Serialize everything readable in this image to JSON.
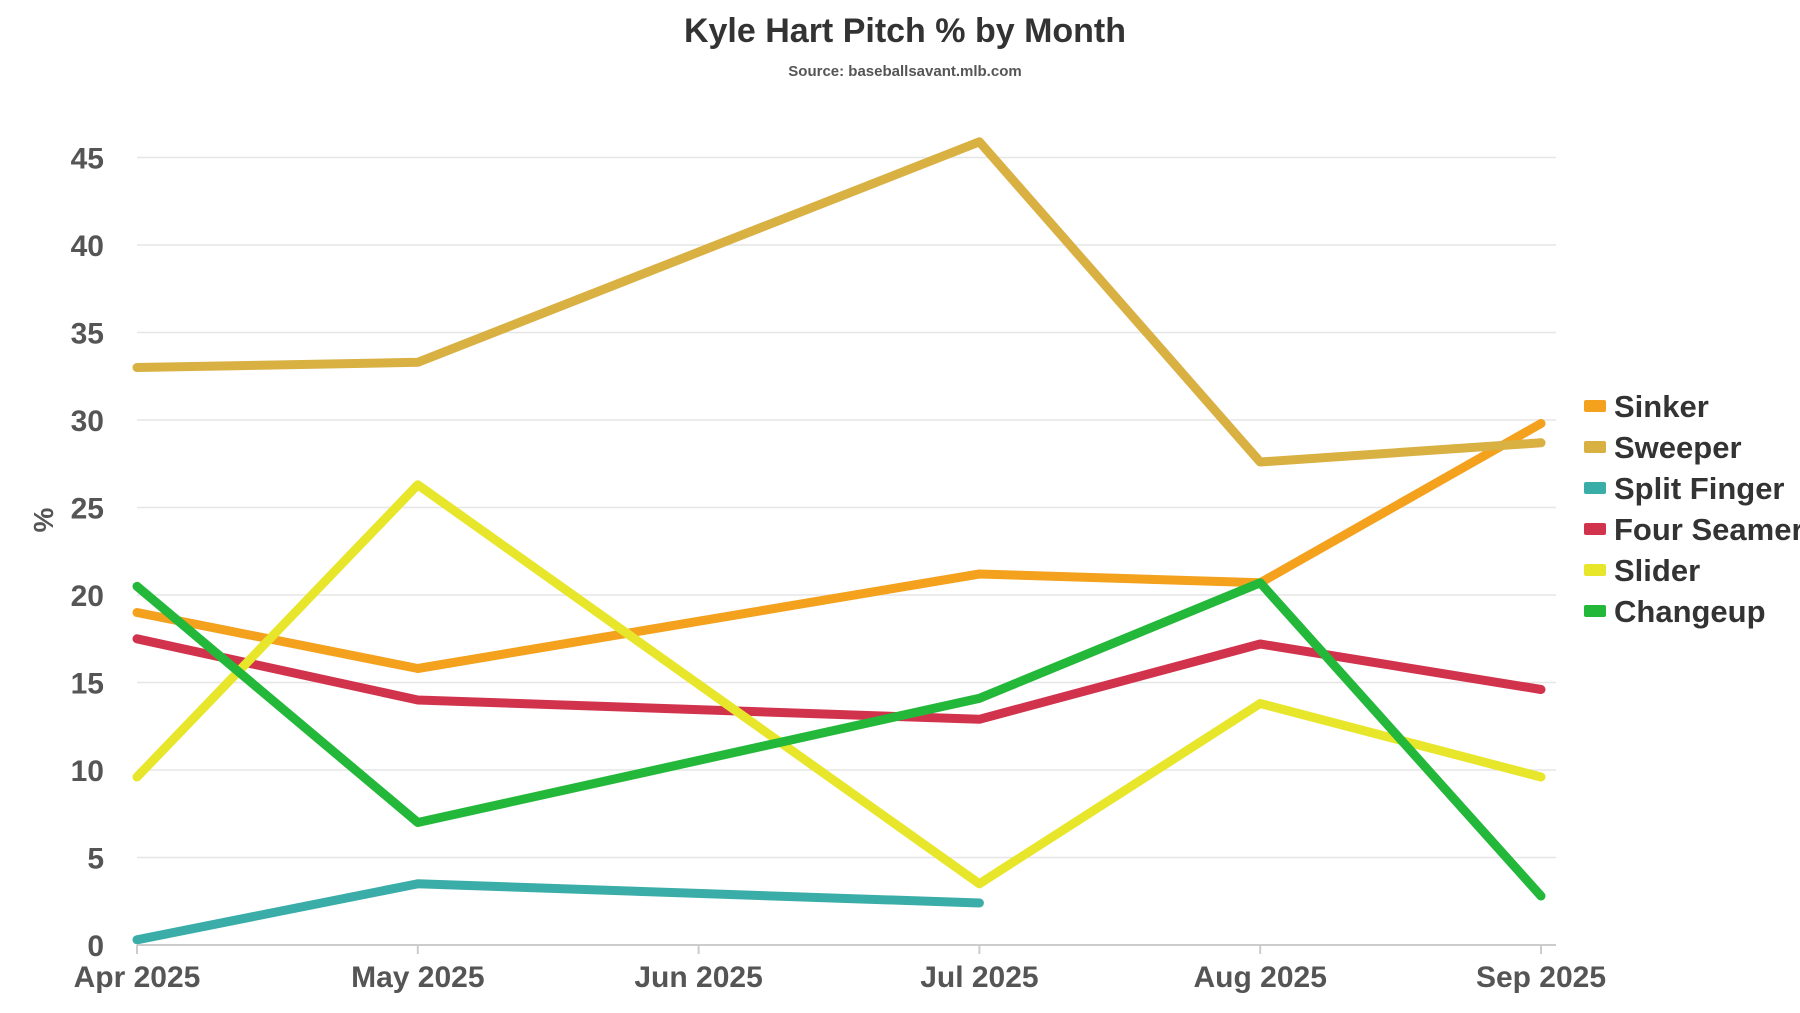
{
  "chart_data": {
    "type": "line",
    "title": "Kyle Hart Pitch % by Month",
    "subtitle": "Source: baseballsavant.mlb.com",
    "xlabel": "",
    "ylabel": "%",
    "ylim": [
      0,
      46
    ],
    "yticks": [
      0,
      5,
      10,
      15,
      20,
      25,
      30,
      35,
      40,
      45
    ],
    "grid": true,
    "legend_position": "right",
    "categories": [
      "Apr 2025",
      "May 2025",
      "Jun 2025",
      "Jul 2025",
      "Aug 2025",
      "Sep 2025"
    ],
    "series": [
      {
        "name": "Sinker",
        "color": "#F4A11D",
        "points": [
          [
            0,
            19.0
          ],
          [
            1,
            15.8
          ],
          [
            3,
            21.2
          ],
          [
            4,
            20.7
          ],
          [
            5,
            29.8
          ]
        ]
      },
      {
        "name": "Sweeper",
        "color": "#D9B042",
        "points": [
          [
            0,
            33.0
          ],
          [
            1,
            33.3
          ],
          [
            3,
            45.9
          ],
          [
            4,
            27.6
          ],
          [
            5,
            28.7
          ]
        ]
      },
      {
        "name": "Split Finger",
        "color": "#3AADA8",
        "points": [
          [
            0,
            0.3
          ],
          [
            1,
            3.5
          ],
          [
            3,
            2.4
          ]
        ]
      },
      {
        "name": "Four Seamer",
        "color": "#D2334C",
        "points": [
          [
            0,
            17.5
          ],
          [
            1,
            14.0
          ],
          [
            3,
            12.9
          ],
          [
            4,
            17.2
          ],
          [
            5,
            14.6
          ]
        ]
      },
      {
        "name": "Slider",
        "color": "#E8E62A",
        "points": [
          [
            0,
            9.6
          ],
          [
            1,
            26.3
          ],
          [
            3,
            3.5
          ],
          [
            4,
            13.8
          ],
          [
            5,
            9.6
          ]
        ]
      },
      {
        "name": "Changeup",
        "color": "#23B83A",
        "points": [
          [
            0,
            20.5
          ],
          [
            1,
            7.0
          ],
          [
            3,
            14.1
          ],
          [
            4,
            20.7
          ],
          [
            5,
            2.8
          ]
        ]
      }
    ]
  }
}
